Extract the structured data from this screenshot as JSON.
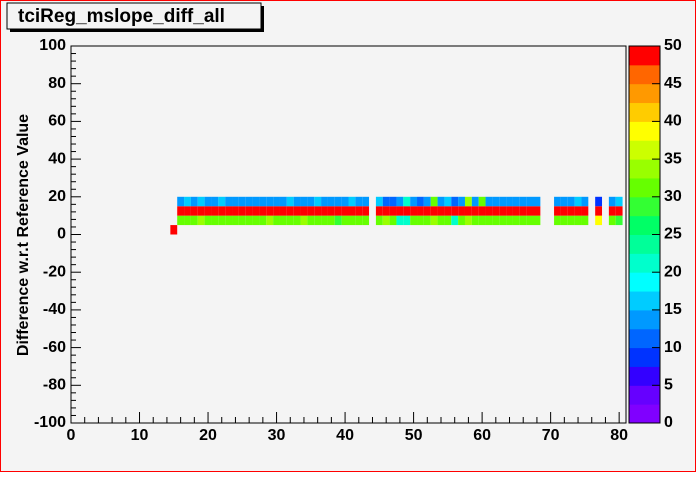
{
  "chart_data": {
    "type": "heatmap",
    "title": "tciReg_mslope_diff_all",
    "y_label": "Difference w.r.t Reference Value",
    "x": [
      15,
      16,
      17,
      18,
      19,
      20,
      21,
      22,
      23,
      24,
      25,
      26,
      27,
      28,
      29,
      30,
      31,
      32,
      33,
      34,
      35,
      36,
      37,
      38,
      39,
      40,
      41,
      42,
      43,
      44,
      45,
      46,
      47,
      48,
      49,
      50,
      51,
      52,
      53,
      54,
      55,
      56,
      57,
      58,
      59,
      60,
      61,
      62,
      63,
      64,
      65,
      66,
      67,
      68,
      69,
      70,
      71,
      72,
      73,
      74,
      75,
      76,
      77,
      78,
      79,
      80
    ],
    "ybins": [
      0,
      5,
      10,
      15,
      20
    ],
    "z": [
      [
        48,
        null,
        null,
        null,
        null,
        null,
        null,
        null,
        null,
        null,
        null,
        null,
        null,
        null,
        null,
        null,
        null,
        null,
        null,
        null,
        null,
        null,
        null,
        null,
        null,
        null,
        null,
        null,
        null,
        null,
        null,
        null,
        null,
        null,
        null,
        null,
        null,
        null,
        null,
        null,
        null,
        null,
        null,
        null,
        null,
        null,
        null,
        null,
        null,
        null,
        null,
        null,
        null,
        null,
        null,
        null,
        null,
        null,
        null,
        null,
        null,
        null,
        null,
        null,
        null,
        null
      ],
      [
        null,
        30,
        30,
        30,
        33,
        30,
        30,
        30,
        30,
        30,
        30,
        30,
        30,
        30,
        33,
        30,
        30,
        30,
        30,
        33,
        30,
        30,
        30,
        30,
        28,
        30,
        30,
        30,
        30,
        null,
        30,
        33,
        30,
        22,
        22,
        30,
        30,
        30,
        33,
        30,
        30,
        22,
        30,
        33,
        30,
        30,
        30,
        30,
        30,
        30,
        30,
        30,
        30,
        30,
        null,
        null,
        30,
        30,
        30,
        30,
        30,
        null,
        38,
        null,
        30,
        28
      ],
      [
        null,
        48,
        48,
        48,
        48,
        48,
        48,
        48,
        48,
        48,
        48,
        48,
        48,
        48,
        48,
        48,
        48,
        48,
        48,
        48,
        48,
        48,
        48,
        48,
        48,
        48,
        48,
        48,
        48,
        null,
        48,
        48,
        48,
        48,
        48,
        48,
        48,
        48,
        48,
        48,
        48,
        48,
        48,
        48,
        48,
        48,
        48,
        48,
        48,
        48,
        48,
        48,
        48,
        48,
        null,
        null,
        48,
        48,
        48,
        48,
        48,
        null,
        48,
        null,
        48,
        48
      ],
      [
        null,
        13,
        15,
        13,
        17,
        13,
        13,
        16,
        13,
        13,
        13,
        13,
        13,
        13,
        13,
        13,
        13,
        15,
        13,
        13,
        13,
        15,
        13,
        13,
        13,
        13,
        15,
        13,
        13,
        null,
        15,
        10,
        10,
        13,
        22,
        13,
        10,
        13,
        30,
        13,
        17,
        10,
        13,
        33,
        13,
        30,
        13,
        13,
        13,
        13,
        13,
        13,
        13,
        13,
        null,
        null,
        13,
        13,
        13,
        15,
        13,
        null,
        8,
        null,
        13,
        17
      ]
    ],
    "xlim": [
      0,
      81
    ],
    "xticks": [
      0,
      10,
      20,
      30,
      40,
      50,
      60,
      70,
      80
    ],
    "ylim": [
      -100,
      100
    ],
    "yticks": [
      -100,
      -80,
      -60,
      -40,
      -20,
      0,
      20,
      40,
      60,
      80,
      100
    ],
    "zlim": [
      0,
      50
    ],
    "zticks": [
      0,
      5,
      10,
      15,
      20,
      25,
      30,
      35,
      40,
      45,
      50
    ],
    "palette": [
      "#8000ff",
      "#6600ff",
      "#3300ff",
      "#0033ff",
      "#0066ff",
      "#0099ff",
      "#00ccff",
      "#00ffff",
      "#00ffcc",
      "#00ff99",
      "#00ff66",
      "#33ff33",
      "#66ff00",
      "#99ff00",
      "#ccff00",
      "#ffff00",
      "#ffcc00",
      "#ff9900",
      "#ff6600",
      "#ff0000"
    ]
  }
}
